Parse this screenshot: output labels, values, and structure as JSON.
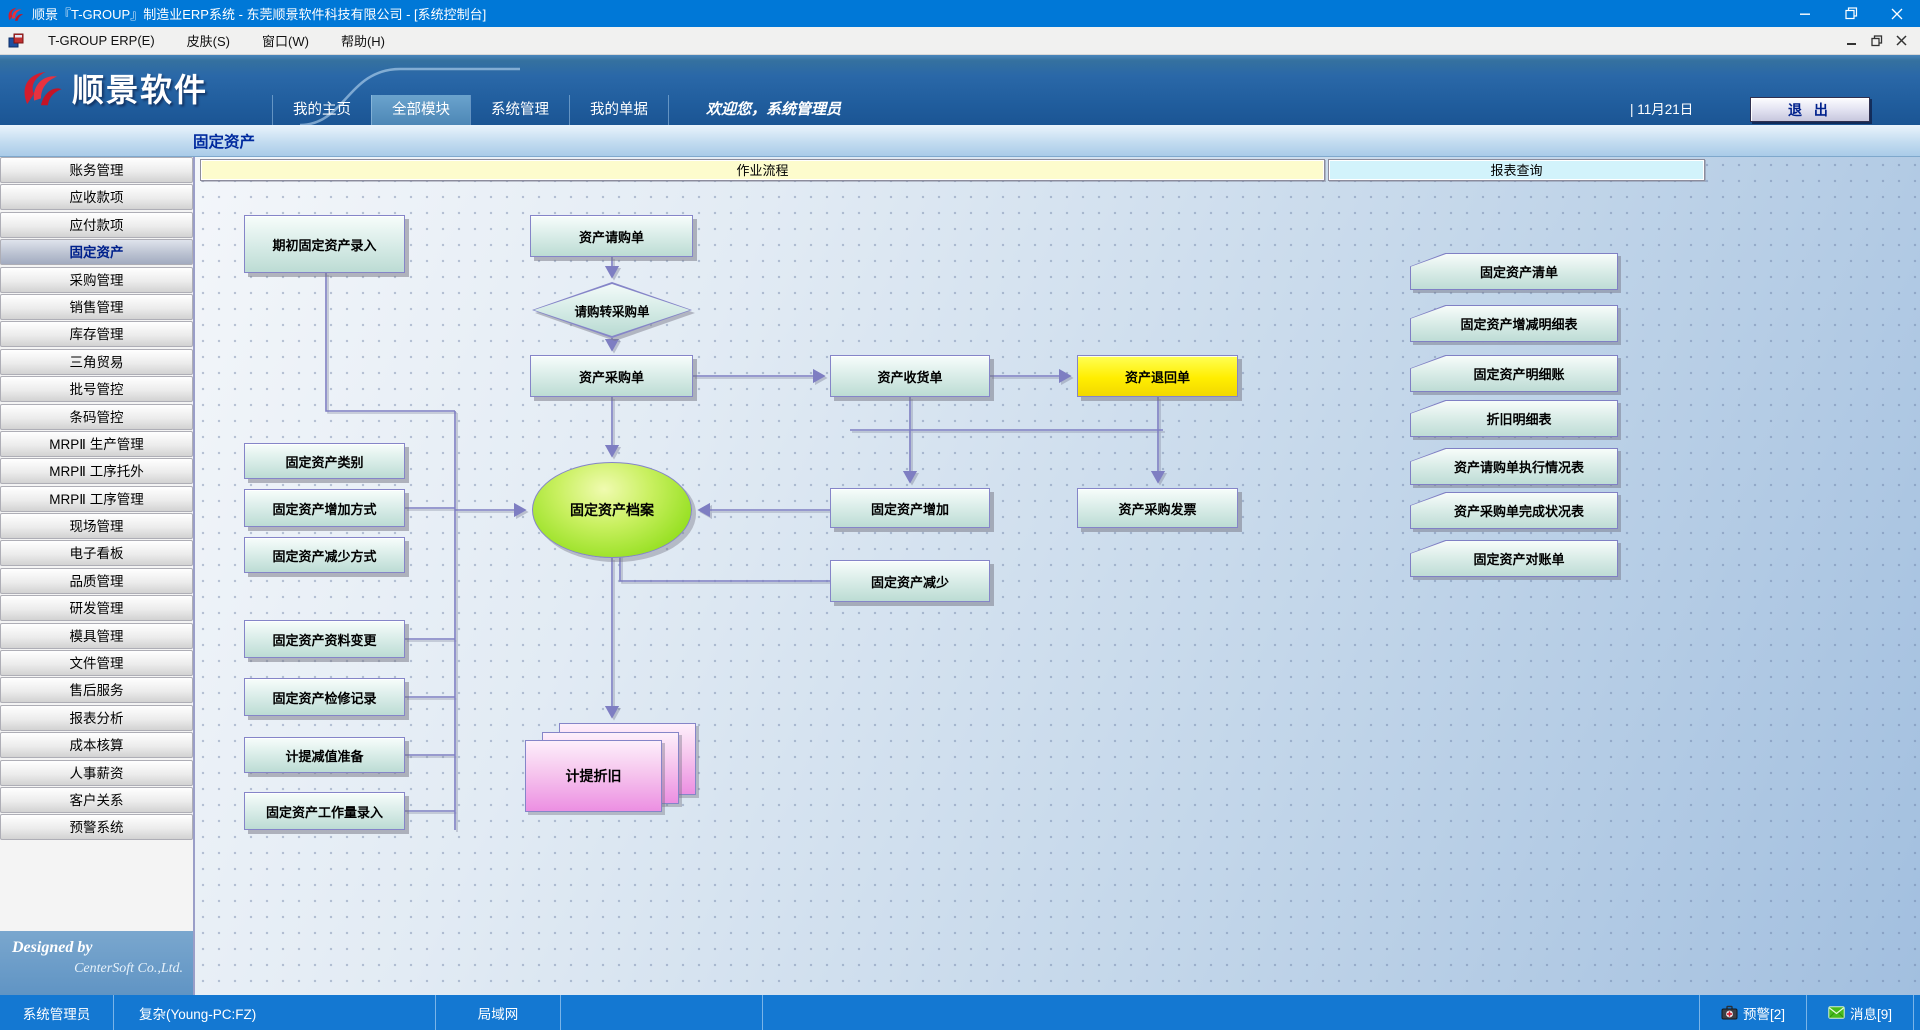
{
  "window": {
    "title": "顺景『T-GROUP』制造业ERP系统 - 东莞顺景软件科技有限公司 - [系统控制台]"
  },
  "menubar": {
    "items": [
      "T-GROUP ERP(E)",
      "皮肤(S)",
      "窗口(W)",
      "帮助(H)"
    ]
  },
  "banner": {
    "logo_text": "顺景软件",
    "tabs": [
      {
        "label": "我的主页",
        "active": false
      },
      {
        "label": "全部模块",
        "active": true
      },
      {
        "label": "系统管理",
        "active": false
      },
      {
        "label": "我的单据",
        "active": false
      }
    ],
    "welcome": "欢迎您，系统管理员",
    "date_separator": "|",
    "date": "11月21日",
    "exit_label": "退 出"
  },
  "breadcrumb": {
    "title": "固定资产"
  },
  "sidebar": {
    "items": [
      {
        "label": "账务管理",
        "active": false
      },
      {
        "label": "应收款项",
        "active": false
      },
      {
        "label": "应付款项",
        "active": false
      },
      {
        "label": "固定资产",
        "active": true
      },
      {
        "label": "采购管理",
        "active": false
      },
      {
        "label": "销售管理",
        "active": false
      },
      {
        "label": "库存管理",
        "active": false
      },
      {
        "label": "三角贸易",
        "active": false
      },
      {
        "label": "批号管控",
        "active": false
      },
      {
        "label": "条码管控",
        "active": false
      },
      {
        "label": "MRPⅡ 生产管理",
        "active": false
      },
      {
        "label": "MRPⅡ 工序托外",
        "active": false
      },
      {
        "label": "MRPⅡ 工序管理",
        "active": false
      },
      {
        "label": "现场管理",
        "active": false
      },
      {
        "label": "电子看板",
        "active": false
      },
      {
        "label": "品质管理",
        "active": false
      },
      {
        "label": "研发管理",
        "active": false
      },
      {
        "label": "模具管理",
        "active": false
      },
      {
        "label": "文件管理",
        "active": false
      },
      {
        "label": "售后服务",
        "active": false
      },
      {
        "label": "报表分析",
        "active": false
      },
      {
        "label": "成本核算",
        "active": false
      },
      {
        "label": "人事薪资",
        "active": false
      },
      {
        "label": "客户关系",
        "active": false
      },
      {
        "label": "预警系统",
        "active": false
      }
    ],
    "designed_by": "Designed by",
    "company": "CenterSoft Co.,Ltd."
  },
  "canvas": {
    "headers": {
      "workflow": "作业流程",
      "reports": "报表查询"
    },
    "nodes": {
      "initial_entry": "期初固定资产录入",
      "request": "资产请购单",
      "request_to_purchase": "请购转采购单",
      "purchase": "资产采购单",
      "receipt": "资产收货单",
      "return": "资产退回单",
      "category": "固定资产类别",
      "add_method": "固定资产增加方式",
      "reduce_method": "固定资产减少方式",
      "archive": "固定资产档案",
      "increase": "固定资产增加",
      "invoice": "资产采购发票",
      "decrease": "固定资产减少",
      "data_change": "固定资产资料变更",
      "inspection": "固定资产检修记录",
      "impairment": "计提减值准备",
      "workload": "固定资产工作量录入",
      "depreciation": "计提折旧"
    },
    "reports": [
      "固定资产清单",
      "固定资产增减明细表",
      "固定资产明细账",
      "折旧明细表",
      "资产请购单执行情况表",
      "资产采购单完成状况表",
      "固定资产对账单"
    ]
  },
  "statusbar": {
    "user": "系统管理员",
    "workstation": "复杂(Young-PC:FZ)",
    "network": "局域网",
    "alerts": "预警[2]",
    "messages": "消息[9]"
  },
  "colors": {
    "titlebar_blue": "#0078d7",
    "banner_blue": "#2a68a8",
    "status_blue": "#1478d2",
    "highlight_yellow": "#ffee00",
    "archive_green": "#8ddc1a",
    "depreciation_pink": "#ec8fe2",
    "connector_purple": "#7e7ec2"
  }
}
